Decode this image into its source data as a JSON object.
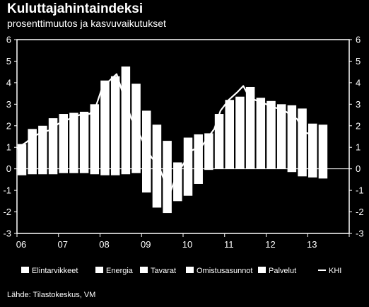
{
  "chart_data": {
    "type": "bar",
    "title": "Kuluttajahintaindeksi",
    "subtitle": "prosenttimuutos ja kasvuvaikutukset",
    "source": "Lähde: Tilastokeskus, VM",
    "ylim": [
      -3,
      6
    ],
    "yticks": [
      "-3",
      "-2",
      "-1",
      "0",
      "1",
      "2",
      "3",
      "4",
      "5",
      "6"
    ],
    "x_start": 2006.0,
    "x_end": 2014.0,
    "xtick_labels": [
      {
        "x": 2006.0,
        "label": "06"
      },
      {
        "x": 2007.0,
        "label": "07"
      },
      {
        "x": 2008.0,
        "label": "08"
      },
      {
        "x": 2009.0,
        "label": "09"
      },
      {
        "x": 2010.0,
        "label": "10"
      },
      {
        "x": 2011.0,
        "label": "11"
      },
      {
        "x": 2012.0,
        "label": "12"
      },
      {
        "x": 2013.0,
        "label": "13"
      }
    ],
    "legend": {
      "placement": "bottom",
      "entries": [
        "Elintarvikkeet",
        "Energia",
        "Tavarat",
        "Omistusasunnot",
        "Palvelut",
        "KHI"
      ]
    },
    "stacked_totals": {
      "x": [
        2006.0,
        2006.25,
        2006.5,
        2006.75,
        2007.0,
        2007.25,
        2007.5,
        2007.75,
        2008.0,
        2008.25,
        2008.5,
        2008.75,
        2009.0,
        2009.25,
        2009.5,
        2009.75,
        2010.0,
        2010.25,
        2010.5,
        2010.75,
        2011.0,
        2011.25,
        2011.5,
        2011.75,
        2012.0,
        2012.25,
        2012.5,
        2012.75,
        2013.0,
        2013.25
      ],
      "positive": [
        1.15,
        1.85,
        2.0,
        2.35,
        2.55,
        2.6,
        2.65,
        3.0,
        4.1,
        4.3,
        4.75,
        3.95,
        2.7,
        2.05,
        1.3,
        0.3,
        1.45,
        1.6,
        1.65,
        2.55,
        3.2,
        3.35,
        3.8,
        3.3,
        3.15,
        3.0,
        2.95,
        2.8,
        2.1,
        2.05
      ],
      "negative": [
        -0.3,
        -0.25,
        -0.25,
        -0.25,
        -0.2,
        -0.2,
        -0.2,
        -0.25,
        -0.3,
        -0.3,
        -0.25,
        -0.2,
        -1.1,
        -1.8,
        -2.05,
        -1.5,
        -1.25,
        -0.7,
        -0.05,
        0,
        0,
        0,
        0,
        0,
        0,
        0,
        -0.15,
        -0.35,
        -0.4,
        -0.45
      ]
    },
    "series": [
      {
        "name": "KHI",
        "type": "line",
        "points": [
          [
            2006.0,
            0.95
          ],
          [
            2006.2,
            1.2
          ],
          [
            2006.4,
            1.5
          ],
          [
            2006.6,
            1.7
          ],
          [
            2006.8,
            1.8
          ],
          [
            2007.0,
            2.1
          ],
          [
            2007.3,
            2.35
          ],
          [
            2007.5,
            2.5
          ],
          [
            2007.75,
            2.55
          ],
          [
            2007.9,
            2.9
          ],
          [
            2008.05,
            3.75
          ],
          [
            2008.2,
            4.05
          ],
          [
            2008.4,
            4.4
          ],
          [
            2008.55,
            3.5
          ],
          [
            2008.75,
            2.35
          ],
          [
            2008.9,
            1.8
          ],
          [
            2009.1,
            1.0
          ],
          [
            2009.25,
            0.5
          ],
          [
            2009.4,
            0.2
          ],
          [
            2009.6,
            -0.8
          ],
          [
            2009.7,
            -1.05
          ],
          [
            2009.85,
            -0.25
          ],
          [
            2010.0,
            0.2
          ],
          [
            2010.2,
            0.85
          ],
          [
            2010.45,
            1.05
          ],
          [
            2010.6,
            1.45
          ],
          [
            2010.75,
            1.85
          ],
          [
            2010.9,
            2.7
          ],
          [
            2011.1,
            3.2
          ],
          [
            2011.3,
            3.55
          ],
          [
            2011.45,
            3.85
          ],
          [
            2011.6,
            3.3
          ],
          [
            2011.8,
            3.15
          ],
          [
            2012.0,
            3.0
          ],
          [
            2012.2,
            2.85
          ],
          [
            2012.4,
            2.75
          ],
          [
            2012.6,
            2.5
          ],
          [
            2012.75,
            2.3
          ],
          [
            2012.9,
            1.7
          ],
          [
            2013.1,
            1.6
          ]
        ]
      }
    ]
  }
}
